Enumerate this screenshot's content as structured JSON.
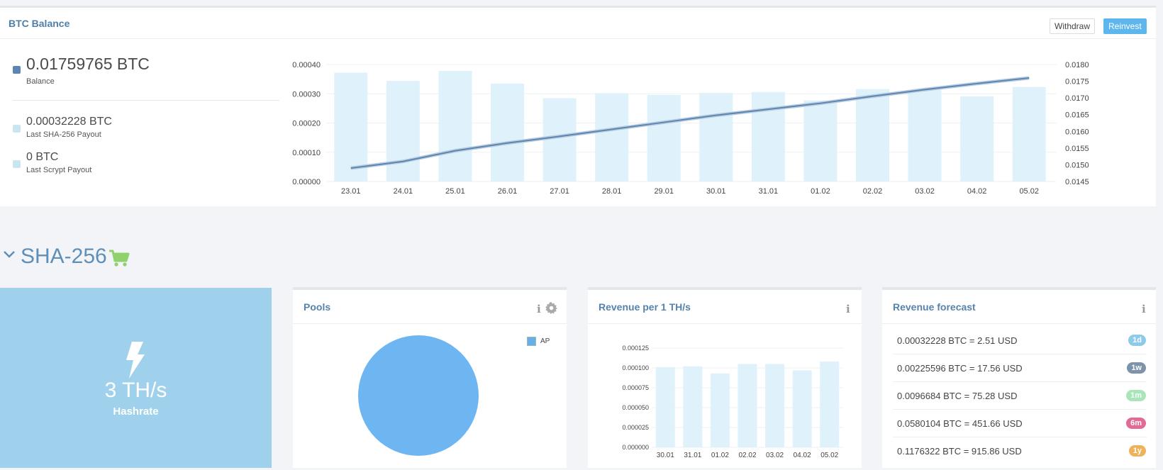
{
  "balance": {
    "title": "BTC Balance",
    "withdraw_label": "Withdraw",
    "reinvest_label": "Reinvest",
    "main_value": "0.01759765 BTC",
    "main_label": "Balance",
    "sha_value": "0.00032228 BTC",
    "sha_label": "Last SHA-256 Payout",
    "scrypt_value": "0 BTC",
    "scrypt_label": "Last Scrypt Payout",
    "colors": {
      "balance": "#5c86b1",
      "payout": "#c9e5ef",
      "bars": "#dff2fb",
      "line": "#5c86b1",
      "accent": "#5db7ee"
    }
  },
  "chart_data": [
    {
      "type": "bar",
      "categories": [
        "23.01",
        "24.01",
        "25.01",
        "26.01",
        "27.01",
        "28.01",
        "29.01",
        "30.01",
        "31.01",
        "01.02",
        "02.02",
        "03.02",
        "04.02",
        "05.02"
      ],
      "series": [
        {
          "axis": "left",
          "type": "bar",
          "values": [
            0.000372,
            0.000344,
            0.000378,
            0.000335,
            0.000285,
            0.000302,
            0.000296,
            0.000303,
            0.000306,
            0.000277,
            0.000316,
            0.000314,
            0.000291,
            0.000323
          ]
        },
        {
          "axis": "right",
          "type": "line",
          "values": [
            0.0149,
            0.0151,
            0.01542,
            0.01565,
            0.01585,
            0.01606,
            0.01627,
            0.01648,
            0.01666,
            0.01684,
            0.01705,
            0.01725,
            0.01743,
            0.01759765
          ]
        }
      ],
      "ylim_left": [
        0,
        0.0004
      ],
      "yticks_left": [
        "0.00000",
        "0.00010",
        "0.00020",
        "0.00030",
        "0.00040"
      ],
      "ylim_right": [
        0.0145,
        0.018
      ],
      "yticks_right": [
        "0.0145",
        "0.0150",
        "0.0155",
        "0.0160",
        "0.0165",
        "0.0170",
        "0.0175",
        "0.0180"
      ],
      "grid": true
    },
    {
      "type": "bar",
      "categories": [
        "30.01",
        "31.01",
        "01.02",
        "02.02",
        "03.02",
        "04.02",
        "05.02"
      ],
      "values": [
        0.000101,
        0.000102,
        9.3e-05,
        0.000105,
        0.000105,
        9.7e-05,
        0.000108
      ],
      "ylim": [
        0,
        0.000125
      ],
      "yticks": [
        "0.000000",
        "0.000025",
        "0.000050",
        "0.000075",
        "0.000100",
        "0.000125"
      ],
      "grid": true
    }
  ],
  "section": {
    "title": "SHA-256",
    "chevron_icon": "chevron-down-icon",
    "cart_icon": "cart-icon",
    "cart_color": "#8fd16b"
  },
  "hashrate": {
    "value": "3 TH/s",
    "label": "Hashrate",
    "icon": "bolt-icon"
  },
  "pools": {
    "title": "Pools",
    "legend_label": "AP",
    "pie_color": "#6db6f2",
    "slices": [
      {
        "name": "AP",
        "value": 100
      }
    ]
  },
  "revenue": {
    "title": "Revenue per 1 TH/s"
  },
  "forecast": {
    "title": "Revenue forecast",
    "rows": [
      {
        "text": "0.00032228 BTC = 2.51 USD",
        "badge": "1d",
        "color": "#8ccbe9"
      },
      {
        "text": "0.00225596 BTC = 17.56 USD",
        "badge": "1w",
        "color": "#7c93a9"
      },
      {
        "text": "0.0096684 BTC = 75.28 USD",
        "badge": "1m",
        "color": "#a8e6b8"
      },
      {
        "text": "0.0580104 BTC = 451.66 USD",
        "badge": "6m",
        "color": "#e26a96"
      },
      {
        "text": "0.1176322 BTC = 915.86 USD",
        "badge": "1y",
        "color": "#eeb25a"
      }
    ]
  }
}
